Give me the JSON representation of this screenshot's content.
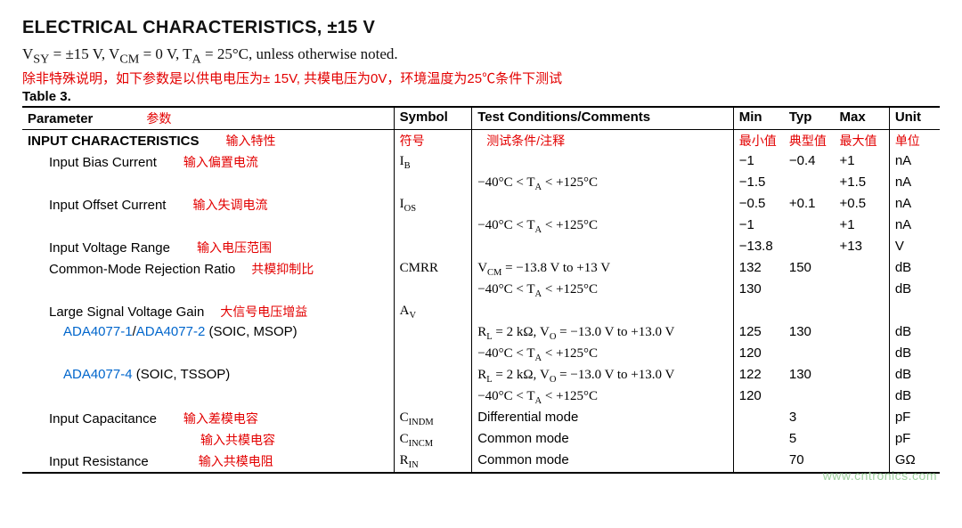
{
  "title": "ELECTRICAL CHARACTERISTICS, ±15 V",
  "condition_html": "V<sub>SY</sub> = ±15 V, V<sub>CM</sub> = 0 V, T<sub>A</sub> = 25°C, unless otherwise noted.",
  "condition_cn": "除非特殊说明，如下参数是以供电电压为± 15V, 共模电压为0V，环境温度为25℃条件下测试",
  "table_label": "Table 3.",
  "headers": {
    "parameter": "Parameter",
    "parameter_ann": "参数",
    "symbol": "Symbol",
    "conditions": "Test Conditions/Comments",
    "min": "Min",
    "typ": "Typ",
    "max": "Max",
    "unit": "Unit"
  },
  "rows": [
    {
      "param_html": "<span class=\"section\">INPUT CHARACTERISTICS</span><span class=\"ann\">输入特性</span>",
      "symbol_html": "<span class=\"ann-sm\">符号</span>",
      "cond_html": "<span class=\"ann-sm\" style=\"padding-left:10px;\">测试条件/注释</span>",
      "min": "<span class=\"ann-sm\">最小值</span>",
      "typ": "<span class=\"ann-sm\">典型值</span>",
      "max": "<span class=\"ann-sm\">最大值</span>",
      "unit": "<span class=\"ann-sm\">单位</span>"
    },
    {
      "param_html": "<span class=\"indent1\">Input Bias Current</span><span class=\"ann\">输入偏置电流</span>",
      "symbol_html": "<span class=\"serif\">I<span class=\"sub\">B</span></span>",
      "cond_html": "",
      "min": "−1",
      "typ": "−0.4",
      "max": "+1",
      "unit": "nA"
    },
    {
      "param_html": "",
      "symbol_html": "",
      "cond_html": "<span class=\"serif\">−40°C &lt; T<span class=\"sub\">A</span> &lt; +125°C</span>",
      "min": "−1.5",
      "typ": "",
      "max": "+1.5",
      "unit": "nA"
    },
    {
      "param_html": "<span class=\"indent1\">Input Offset Current</span><span class=\"ann\">输入失调电流</span>",
      "symbol_html": "<span class=\"serif\">I<span class=\"sub\">OS</span></span>",
      "cond_html": "",
      "min": "−0.5",
      "typ": "+0.1",
      "max": "+0.5",
      "unit": "nA"
    },
    {
      "param_html": "",
      "symbol_html": "",
      "cond_html": "<span class=\"serif\">−40°C &lt; T<span class=\"sub\">A</span> &lt; +125°C</span>",
      "min": "−1",
      "typ": "",
      "max": "+1",
      "unit": "nA"
    },
    {
      "param_html": "<span class=\"indent1\">Input Voltage Range</span><span class=\"ann\">输入电压范围</span>",
      "symbol_html": "",
      "cond_html": "",
      "min": "−13.8",
      "typ": "",
      "max": "+13",
      "unit": "V"
    },
    {
      "param_html": "<span class=\"indent1\">Common-Mode Rejection Ratio</span><span class=\"ann\" style=\"padding-left:18px;\">共模抑制比</span>",
      "symbol_html": "<span class=\"serif\">CMRR</span>",
      "cond_html": "<span class=\"serif\">V<span class=\"sub\">CM</span> = −13.8 V to +13 V</span>",
      "min": "132",
      "typ": "150",
      "max": "",
      "unit": "dB"
    },
    {
      "param_html": "",
      "symbol_html": "",
      "cond_html": "<span class=\"serif\">−40°C &lt; T<span class=\"sub\">A</span> &lt; +125°C</span>",
      "min": "130",
      "typ": "",
      "max": "",
      "unit": "dB"
    },
    {
      "param_html": "<span class=\"indent1\">Large Signal Voltage Gain</span><span class=\"ann\" style=\"padding-left:18px;\">大信号电压增益</span>",
      "symbol_html": "<span class=\"serif\">A<span class=\"sub\">V</span></span>",
      "cond_html": "",
      "min": "",
      "typ": "",
      "max": "",
      "unit": ""
    },
    {
      "param_html": "<span class=\"indent2\"><span class=\"link\">ADA4077-1</span>/<span class=\"link\">ADA4077-2</span> (SOIC, MSOP)</span>",
      "symbol_html": "",
      "cond_html": "<span class=\"serif\">R<span class=\"sub\">L</span> = 2 kΩ, V<span class=\"sub\">O</span> = −13.0 V to +13.0 V</span>",
      "min": "125",
      "typ": "130",
      "max": "",
      "unit": "dB"
    },
    {
      "param_html": "",
      "symbol_html": "",
      "cond_html": "<span class=\"serif\">−40°C &lt; T<span class=\"sub\">A</span> &lt; +125°C</span>",
      "min": "120",
      "typ": "",
      "max": "",
      "unit": "dB"
    },
    {
      "param_html": "<span class=\"indent2\"><span class=\"link\">ADA4077-4</span> (SOIC, TSSOP)</span>",
      "symbol_html": "",
      "cond_html": "<span class=\"serif\">R<span class=\"sub\">L</span> = 2 kΩ, V<span class=\"sub\">O</span> = −13.0 V to +13.0 V</span>",
      "min": "122",
      "typ": "130",
      "max": "",
      "unit": "dB"
    },
    {
      "param_html": "",
      "symbol_html": "",
      "cond_html": "<span class=\"serif\">−40°C &lt; T<span class=\"sub\">A</span> &lt; +125°C</span>",
      "min": "120",
      "typ": "",
      "max": "",
      "unit": "dB"
    },
    {
      "param_html": "<span class=\"indent1\">Input Capacitance</span><span class=\"ann\">输入差模电容</span>",
      "symbol_html": "<span class=\"serif\">C<span class=\"sub\">INDM</span></span>",
      "cond_html": "Differential mode",
      "min": "",
      "typ": "3",
      "max": "",
      "unit": "pF"
    },
    {
      "param_html": "<span class=\"indent1\"></span><span class=\"ann\" style=\"padding-left:170px;\">输入共模电容</span>",
      "symbol_html": "<span class=\"serif\">C<span class=\"sub\">INCM</span></span>",
      "cond_html": "Common mode",
      "min": "",
      "typ": "5",
      "max": "",
      "unit": "pF"
    },
    {
      "param_html": "<span class=\"indent1\">Input Resistance</span><span class=\"ann\" style=\"padding-left:56px;\">输入共模电阻</span>",
      "symbol_html": "<span class=\"serif\">R<span class=\"sub\">IN</span></span>",
      "cond_html": "Common mode",
      "min": "",
      "typ": "70",
      "max": "",
      "unit": "GΩ"
    }
  ],
  "footer_url": "www.cntronics.com",
  "colors": {
    "red": "#e30000",
    "link": "#0066cc",
    "footer": "#9fd19f"
  }
}
